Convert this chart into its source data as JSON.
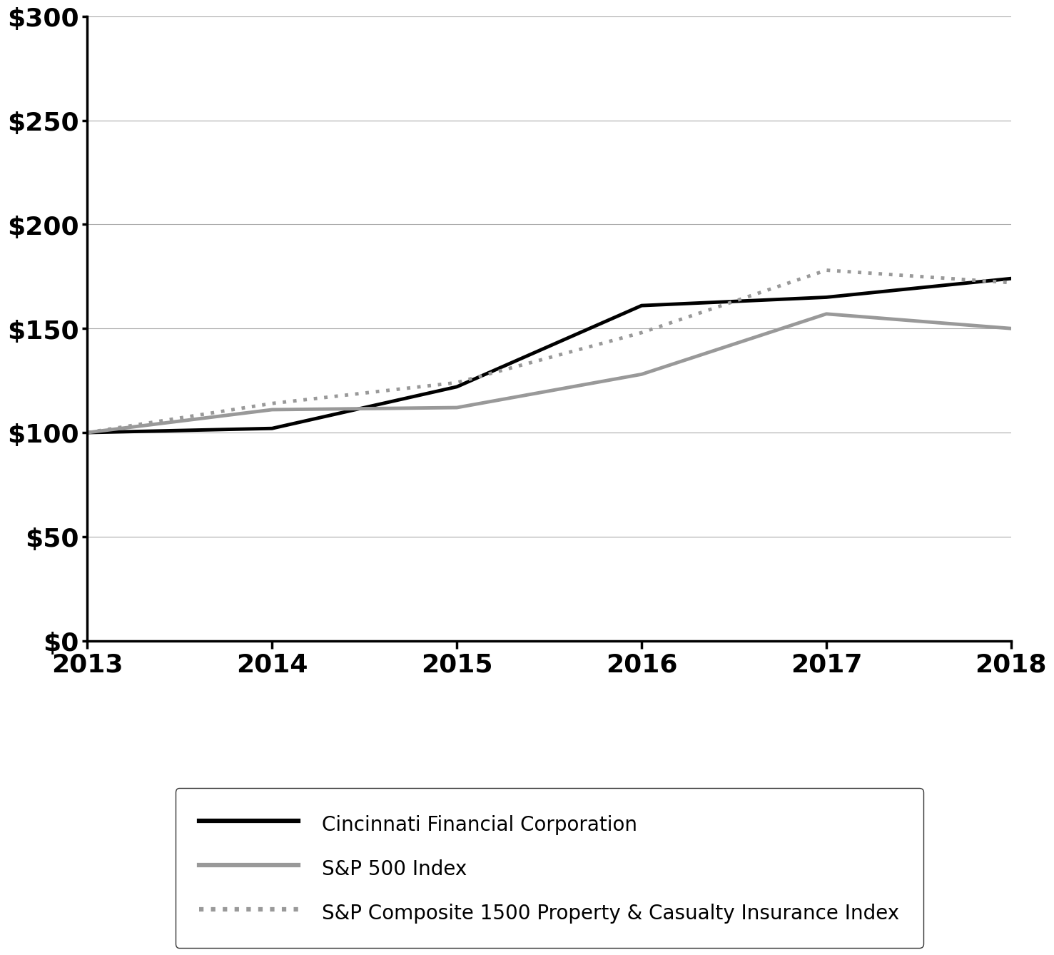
{
  "years": [
    2013,
    2014,
    2015,
    2016,
    2017,
    2018
  ],
  "cincinnati": [
    100,
    102,
    122,
    161,
    165,
    174
  ],
  "sp500": [
    100,
    111,
    112,
    128,
    157,
    150
  ],
  "sp_composite": [
    100,
    114,
    124,
    148,
    178,
    172
  ],
  "ylim": [
    0,
    300
  ],
  "yticks": [
    0,
    50,
    100,
    150,
    200,
    250,
    300
  ],
  "ytick_labels": [
    "$0",
    "$50",
    "$100",
    "$150",
    "$200",
    "$250",
    "$300"
  ],
  "xticks": [
    2013,
    2014,
    2015,
    2016,
    2017,
    2018
  ],
  "line_cincinnati_color": "#000000",
  "line_sp500_color": "#999999",
  "line_composite_color": "#999999",
  "legend_labels": [
    "Cincinnati Financial Corporation",
    "S&P 500 Index",
    "S&P Composite 1500 Property & Casualty Insurance Index"
  ],
  "background_color": "#ffffff",
  "grid_color": "#aaaaaa",
  "line_width": 3.5,
  "font_size_ticks": 26,
  "font_size_legend": 20,
  "spine_linewidth": 2.5
}
